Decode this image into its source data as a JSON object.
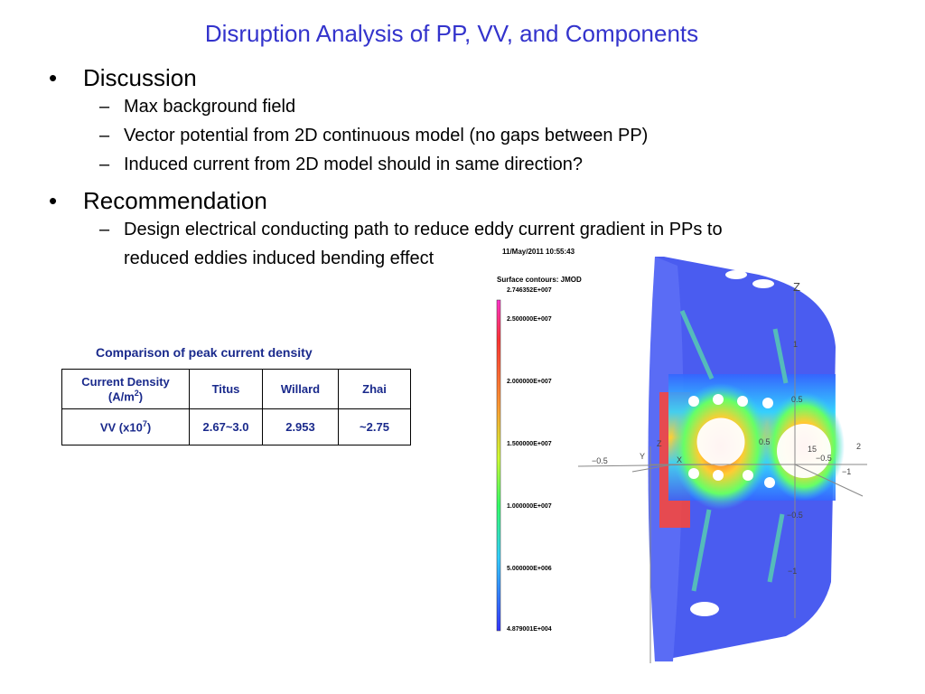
{
  "title": "Disruption Analysis of PP, VV, and Components",
  "sections": [
    {
      "heading": "Discussion",
      "items": [
        "Max background field",
        "Vector potential from 2D continuous model (no gaps between PP)",
        "Induced current from 2D model should in same direction?"
      ]
    },
    {
      "heading": "Recommendation",
      "items": [
        "Design electrical conducting path to reduce eddy current gradient in PPs to",
        "reduced eddies induced bending effect"
      ]
    }
  ],
  "bullet_symbol": "•",
  "dash_symbol": "–",
  "table": {
    "caption": "Comparison of peak current density",
    "header": {
      "c0_line1": "Current Density",
      "c0_line2_pre": "(A/m",
      "c0_line2_sup": "2",
      "c0_line2_post": ")",
      "c1": "Titus",
      "c2": "Willard",
      "c3": "Zhai"
    },
    "row": {
      "c0_pre": "VV (x10",
      "c0_sup": "7",
      "c0_post": ")",
      "c1": "2.67~3.0",
      "c2": "2.953",
      "c3": "~2.75"
    }
  },
  "figure": {
    "timestamp": "11/May/2011 10:55:43",
    "contour_label": "Surface contours: JMOD",
    "legend_ticks": [
      "2.746352E+007",
      "2.500000E+007",
      "2.000000E+007",
      "1.500000E+007",
      "1.000000E+007",
      "5.000000E+006",
      "4.879001E+004"
    ],
    "axis_labels": {
      "z_top": "Z",
      "z_mid": "Z",
      "y": "Y",
      "x": "X",
      "t1": "1",
      "t05": "0.5",
      "t15": "15",
      "t2": "2",
      "tm05a": "−0.5",
      "tm1": "−1",
      "tm05b": "−0.5",
      "tm1b": "−1",
      "t05b": "0.5",
      "tm05c": "−0.5"
    }
  }
}
